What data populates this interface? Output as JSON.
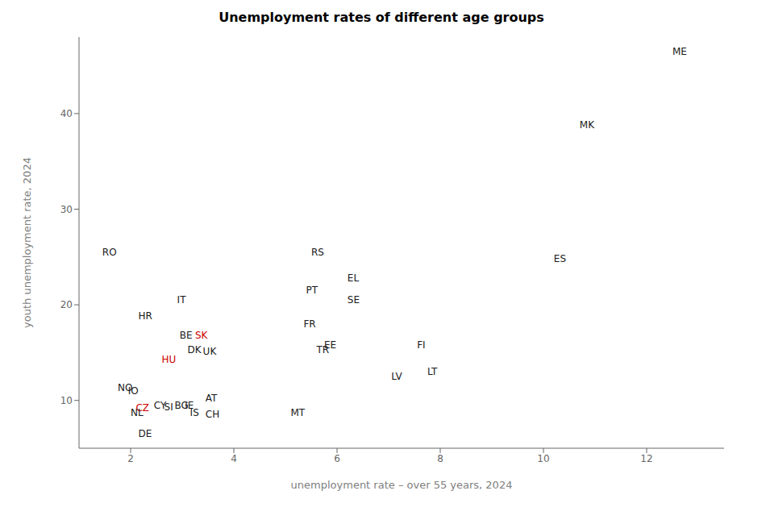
{
  "chart_data": {
    "type": "scatter",
    "title": "Unemployment rates of different age groups",
    "x_label": "unemployment rate – over 55 years, 2024",
    "y_label": "youth unemployment rate, 2024",
    "xlim": [
      1.0,
      13.5
    ],
    "ylim": [
      5.0,
      48.0
    ],
    "xticks": [
      2,
      4,
      6,
      8,
      10,
      12
    ],
    "yticks": [
      10,
      20,
      30,
      40
    ],
    "grid": false,
    "marker": "none",
    "labels": [
      "ME",
      "MK",
      "ES",
      "RS",
      "EL",
      "PT",
      "SE",
      "RO",
      "IT",
      "HR",
      "FR",
      "BE",
      "SK",
      "EE",
      "DK",
      "UK",
      "TR",
      "FI",
      "HU",
      "LT",
      "LV",
      "NO",
      "IO",
      "AT",
      "CY",
      "SI",
      "BG",
      "IE",
      "CZ",
      "IS",
      "CH",
      "NL",
      "MT",
      "DE"
    ],
    "x": [
      12.5,
      10.7,
      10.2,
      5.5,
      6.2,
      5.4,
      6.2,
      1.45,
      2.9,
      2.15,
      5.35,
      2.95,
      3.25,
      5.75,
      3.1,
      3.4,
      5.6,
      7.55,
      2.6,
      7.75,
      7.05,
      1.75,
      1.95,
      3.45,
      2.45,
      2.65,
      2.85,
      3.05,
      2.1,
      3.15,
      3.45,
      2.0,
      5.1,
      2.15
    ],
    "values": [
      46.5,
      38.8,
      24.8,
      25.5,
      22.8,
      21.5,
      20.5,
      25.5,
      20.5,
      18.8,
      18.0,
      16.8,
      16.8,
      15.8,
      15.3,
      15.1,
      15.3,
      15.8,
      14.3,
      13.0,
      12.5,
      11.3,
      11.0,
      10.2,
      9.5,
      9.3,
      9.5,
      9.5,
      9.2,
      8.7,
      8.5,
      8.7,
      8.7,
      6.5
    ],
    "colors": [
      "#1a1a1a",
      "#1a1a1a",
      "#1a1a1a",
      "#1a1a1a",
      "#1a1a1a",
      "#1a1a1a",
      "#1a1a1a",
      "#1a1a1a",
      "#1a1a1a",
      "#1a1a1a",
      "#1a1a1a",
      "#1a1a1a",
      "#cc0000",
      "#1a1a1a",
      "#1a1a1a",
      "#1a1a1a",
      "#1a1a1a",
      "#1a1a1a",
      "#cc0000",
      "#1a1a1a",
      "#1a1a1a",
      "#1a1a1a",
      "#1a1a1a",
      "#1a1a1a",
      "#1a1a1a",
      "#1a1a1a",
      "#1a1a1a",
      "#1a1a1a",
      "#cc0000",
      "#1a1a1a",
      "#1a1a1a",
      "#1a1a1a",
      "#1a1a1a",
      "#1a1a1a"
    ]
  }
}
